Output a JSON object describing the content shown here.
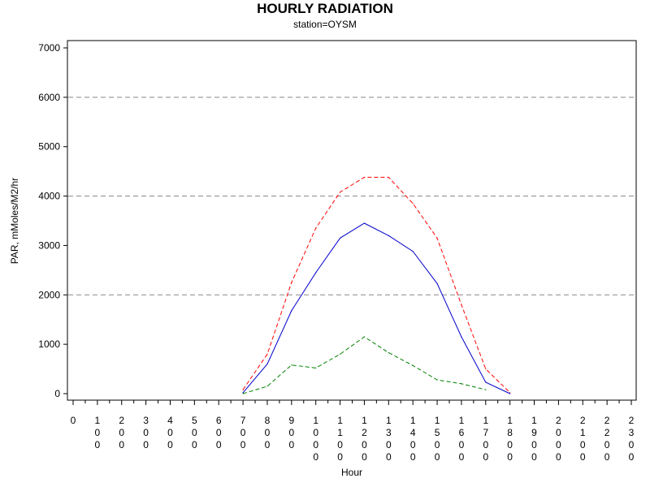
{
  "chart_data": {
    "type": "line",
    "title": "HOURLY RADIATION",
    "subtitle": "station=OYSM",
    "xlabel": "Hour",
    "ylabel": "PAR, mMoles/M2/hr",
    "xlim": [
      0,
      2300
    ],
    "ylim": [
      0,
      7000
    ],
    "x_ticks": [
      "0",
      "100",
      "200",
      "300",
      "400",
      "500",
      "600",
      "700",
      "800",
      "900",
      "1000",
      "1100",
      "1200",
      "1300",
      "1400",
      "1500",
      "1600",
      "1700",
      "1800",
      "1900",
      "2000",
      "2100",
      "2200",
      "2300"
    ],
    "y_ticks": [
      0,
      1000,
      2000,
      3000,
      4000,
      5000,
      6000,
      7000
    ],
    "gridlines_y": [
      2000,
      4000,
      6000
    ],
    "series": [
      {
        "color": "#ff0000",
        "style": "dashed",
        "x": [
          700,
          800,
          900,
          1000,
          1100,
          1200,
          1300,
          1400,
          1500,
          1600,
          1700,
          1800
        ],
        "values": [
          80,
          800,
          2250,
          3350,
          4080,
          4380,
          4380,
          3850,
          3150,
          1800,
          500,
          20
        ]
      },
      {
        "color": "#0000cc",
        "style": "solid",
        "x": [
          700,
          800,
          900,
          1000,
          1100,
          1200,
          1300,
          1400,
          1500,
          1600,
          1700,
          1800
        ],
        "values": [
          20,
          600,
          1680,
          2450,
          3150,
          3450,
          3200,
          2880,
          2230,
          1150,
          230,
          0
        ]
      },
      {
        "color": "#008000",
        "style": "dashed",
        "x": [
          700,
          800,
          900,
          1000,
          1100,
          1200,
          1300,
          1400,
          1500,
          1600,
          1700
        ],
        "values": [
          0,
          150,
          580,
          520,
          800,
          1150,
          830,
          570,
          280,
          200,
          80
        ]
      }
    ]
  }
}
